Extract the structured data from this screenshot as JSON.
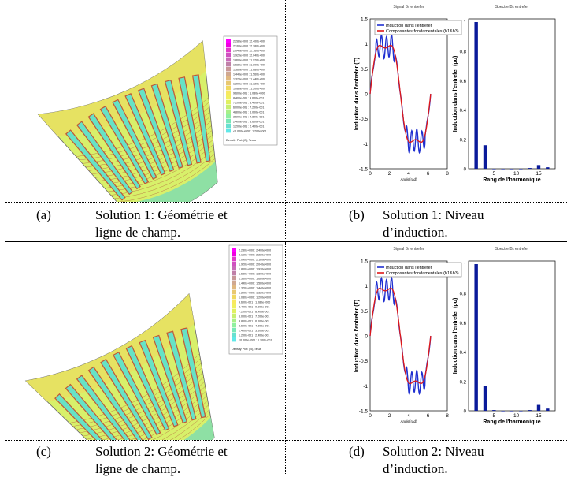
{
  "panels": {
    "a": {
      "letter": "(a)",
      "line1": "Solution 1: Géométrie et",
      "line2": "ligne de champ."
    },
    "b": {
      "letter": "(b)",
      "line1": "Solution 1: Niveau",
      "line2": "d’induction."
    },
    "c": {
      "letter": "(c)",
      "line1": "Solution 2: Géométrie et",
      "line2": "ligne de champ."
    },
    "d": {
      "letter": "(d)",
      "line1": "Solution 2: Niveau",
      "line2": "d’induction."
    }
  },
  "field_legend": {
    "entries": [
      "2.280e+000 : 2.400e+000",
      "2.160e+000 : 2.280e+000",
      "2.040e+000 : 2.160e+000",
      "1.920e+000 : 2.040e+000",
      "1.800e+000 : 1.920e+000",
      "1.680e+000 : 1.800e+000",
      "1.560e+000 : 1.680e+000",
      "1.440e+000 : 1.560e+000",
      "1.320e+000 : 1.440e+000",
      "1.200e+000 : 1.320e+000",
      "1.080e+000 : 1.200e+000",
      "9.600e-001 : 1.080e+000",
      "8.400e-001 : 9.600e-001",
      "7.200e-001 : 8.400e-001",
      "6.000e-001 : 7.200e-001",
      "4.800e-001 : 6.000e-001",
      "3.600e-001 : 4.800e-001",
      "2.400e-001 : 3.600e-001",
      "1.200e-001 : 2.400e-001",
      "<0.000e+000 : 1.200e-001"
    ],
    "footer": "Density Plot: |B|, Tesla",
    "colors": [
      "#ff00ff",
      "#f000e0",
      "#e03cc8",
      "#d050c0",
      "#c86ab8",
      "#c080a8",
      "#c89898",
      "#d0a890",
      "#e0b880",
      "#e8c870",
      "#f0d860",
      "#f8e860",
      "#f0f060",
      "#e0f060",
      "#c8f070",
      "#a8f088",
      "#90f0a0",
      "#78e8b8",
      "#68e0d0",
      "#60e8e8"
    ]
  },
  "charts": [
    {
      "id": "b",
      "signal_title": "Signal Bₙ entrefer",
      "spectrum_title": "Spectre Bₙ entrefer",
      "legend": [
        "Induction dans l'entrefer",
        "Composantes fondamentales (h1&h3)"
      ],
      "ylabel": "Induction dans l'entrefer (T)",
      "xlabel": "Angle(rad)",
      "xticks": [
        "0",
        "2",
        "4",
        "6",
        "8"
      ],
      "yticks": [
        "1.5",
        "1",
        "0.5",
        "0",
        "-0.5",
        "-1",
        "-1.5"
      ],
      "spec_ylabel": "Induction dans l'entrefer (pu)",
      "spec_xlabel": "Rang de l'harmonique",
      "spec_xticks": [
        "5",
        "10",
        "15"
      ],
      "spec_yticks": [
        "1",
        "0.8",
        "0.6",
        "0.4",
        "0.2",
        "0"
      ],
      "chart_data": {
        "type": "line+bar",
        "line": {
          "x_range": [
            0,
            8
          ],
          "y_range": [
            -1.5,
            1.5
          ],
          "period": 6.28,
          "fundamental_amp": 1.12,
          "ripple_count": 5
        },
        "bar": {
          "harmonics": [
            1,
            3,
            5,
            7,
            9,
            11,
            13,
            15,
            17
          ],
          "values": [
            1.0,
            0.16,
            0.0,
            0.0,
            0.0,
            0.0,
            0.005,
            0.025,
            0.01
          ]
        }
      }
    },
    {
      "id": "d",
      "signal_title": "Signal Bₙ entrefer",
      "spectrum_title": "Spectre Bₙ entrefer",
      "legend": [
        "Induction dans l'entrefer",
        "Composantes fondamentales (h1&h3)"
      ],
      "ylabel": "Induction dans l'entrefer (T)",
      "xlabel": "Angle(rad)",
      "xticks": [
        "0",
        "2",
        "4",
        "6",
        "8"
      ],
      "yticks": [
        "1.5",
        "1",
        "0.5",
        "0",
        "-0.5",
        "-1",
        "-1.5"
      ],
      "spec_ylabel": "Induction dans l'entrefer (pu)",
      "spec_xlabel": "Rang de l'harmonique",
      "spec_xticks": [
        "5",
        "10",
        "15"
      ],
      "spec_yticks": [
        "1",
        "0.8",
        "0.6",
        "0.4",
        "0.2",
        "0"
      ],
      "chart_data": {
        "type": "line+bar",
        "line": {
          "x_range": [
            0,
            8
          ],
          "y_range": [
            -1.5,
            1.5
          ],
          "period": 6.28,
          "fundamental_amp": 1.1,
          "ripple_count": 5
        },
        "bar": {
          "harmonics": [
            1,
            3,
            5,
            7,
            9,
            11,
            13,
            15,
            17
          ],
          "values": [
            1.0,
            0.17,
            0.005,
            0.0,
            0.0,
            0.0,
            0.005,
            0.04,
            0.015
          ]
        }
      }
    }
  ]
}
